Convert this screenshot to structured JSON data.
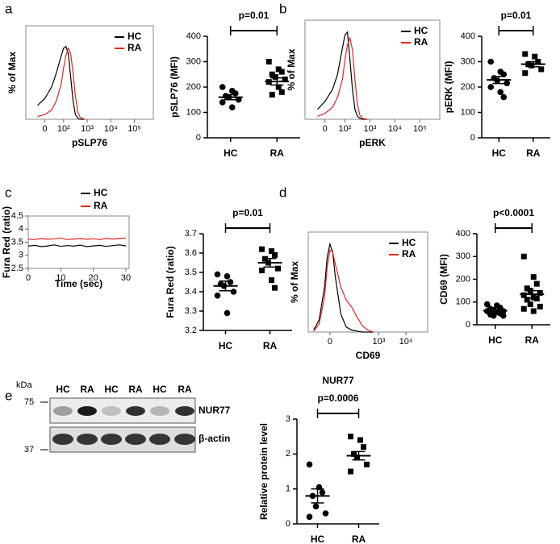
{
  "panel_labels": [
    "a",
    "b",
    "c",
    "d",
    "e"
  ],
  "chart_data": [
    {
      "type": "line",
      "ylabel": "% of Max",
      "xlabel": "pSLP76",
      "xlim": [
        0.4,
        5.8
      ],
      "ylim": [
        0,
        100
      ],
      "xticks": [
        {
          "value": 1.2,
          "label": "0"
        },
        {
          "value": 2,
          "label": "10²"
        },
        {
          "value": 3,
          "label": "10³"
        },
        {
          "value": 4,
          "label": "10⁴"
        },
        {
          "value": 5,
          "label": "10⁵"
        }
      ],
      "legend": "upper right",
      "frame": true,
      "x": [
        0.9,
        1.2,
        1.5,
        1.7,
        1.9,
        2.0,
        2.1,
        2.2,
        2.3,
        2.4,
        2.5,
        2.6,
        2.7,
        2.9
      ],
      "series": [
        {
          "name": "HC",
          "color": "#000000",
          "values": [
            15,
            22,
            35,
            50,
            68,
            76,
            78,
            70,
            45,
            20,
            5,
            1,
            0,
            0
          ]
        },
        {
          "name": "RA",
          "color": "#e8231e",
          "values": [
            3,
            5,
            10,
            20,
            38,
            55,
            68,
            76,
            70,
            50,
            25,
            8,
            2,
            0
          ]
        }
      ]
    },
    {
      "type": "strip",
      "ylabel": "pSLP76 (MFI)",
      "annotation": "p=0.01",
      "categories": [
        "HC",
        "RA"
      ],
      "ylim": [
        0,
        400
      ],
      "yticks": [
        0,
        100,
        200,
        300,
        400
      ],
      "groups": [
        {
          "marker": "circle",
          "values": [
            200,
            185,
            175,
            165,
            160,
            150,
            140,
            120
          ],
          "mean": 160,
          "sem": 10
        },
        {
          "marker": "square",
          "values": [
            300,
            270,
            260,
            250,
            240,
            230,
            220,
            200,
            180,
            170
          ],
          "mean": 222,
          "sem": 14
        }
      ]
    },
    {
      "type": "line",
      "ylabel": "% of Max",
      "xlabel": "pERK",
      "xlim": [
        0.4,
        5.8
      ],
      "ylim": [
        0,
        100
      ],
      "xticks": [
        {
          "value": 1.2,
          "label": "0"
        },
        {
          "value": 2,
          "label": "10²"
        },
        {
          "value": 3,
          "label": "10³"
        },
        {
          "value": 4,
          "label": "10⁴"
        },
        {
          "value": 5,
          "label": "10⁵"
        }
      ],
      "legend": "upper right",
      "frame": true,
      "x": [
        0.9,
        1.2,
        1.5,
        1.7,
        1.9,
        2.0,
        2.1,
        2.2,
        2.3,
        2.4,
        2.5,
        2.6,
        2.7,
        2.9
      ],
      "series": [
        {
          "name": "HC",
          "color": "#000000",
          "values": [
            10,
            18,
            30,
            45,
            72,
            85,
            88,
            60,
            30,
            10,
            3,
            1,
            0,
            0
          ]
        },
        {
          "name": "RA",
          "color": "#e8231e",
          "values": [
            3,
            6,
            12,
            22,
            40,
            60,
            75,
            82,
            70,
            40,
            15,
            4,
            1,
            0
          ]
        }
      ]
    },
    {
      "type": "strip",
      "ylabel": "pERK (MFI)",
      "annotation": "p=0.01",
      "categories": [
        "HC",
        "RA"
      ],
      "ylim": [
        0,
        400
      ],
      "yticks": [
        0,
        100,
        200,
        300,
        400
      ],
      "groups": [
        {
          "marker": "circle",
          "values": [
            300,
            260,
            250,
            235,
            225,
            215,
            200,
            180,
            160
          ],
          "mean": 228,
          "sem": 14
        },
        {
          "marker": "square",
          "values": [
            330,
            320,
            300,
            290,
            285,
            270,
            255
          ],
          "mean": 290,
          "sem": 10
        }
      ]
    },
    {
      "type": "line",
      "ylabel": "Fura Red (ratio)",
      "xlabel": "Time (sec)",
      "xlim": [
        0,
        31
      ],
      "ylim": [
        2.5,
        4.5
      ],
      "xticks": [
        0,
        10,
        20,
        30
      ],
      "yticks": [
        2.5,
        3,
        3.5,
        4,
        4.5
      ],
      "legend": "above",
      "frame": true,
      "x": [
        0,
        2,
        4,
        6,
        8,
        10,
        12,
        14,
        16,
        18,
        20,
        22,
        24,
        26,
        28,
        30
      ],
      "series": [
        {
          "name": "HC",
          "color": "#000000",
          "values": [
            3.35,
            3.38,
            3.33,
            3.36,
            3.4,
            3.34,
            3.37,
            3.35,
            3.39,
            3.33,
            3.36,
            3.38,
            3.34,
            3.37,
            3.4,
            3.36
          ]
        },
        {
          "name": "RA",
          "color": "#e8231e",
          "values": [
            3.62,
            3.6,
            3.64,
            3.61,
            3.63,
            3.66,
            3.6,
            3.62,
            3.64,
            3.61,
            3.63,
            3.6,
            3.65,
            3.62,
            3.64,
            3.66
          ]
        }
      ]
    },
    {
      "type": "strip",
      "ylabel": "Fura Red (ratio)",
      "annotation": "p=0.01",
      "categories": [
        "HC",
        "RA"
      ],
      "ylim": [
        3.2,
        3.7
      ],
      "yticks": [
        3.2,
        3.3,
        3.4,
        3.5,
        3.6,
        3.7
      ],
      "groups": [
        {
          "marker": "circle",
          "values": [
            3.49,
            3.48,
            3.45,
            3.44,
            3.43,
            3.4,
            3.38,
            3.29
          ],
          "mean": 3.43,
          "sem": 0.025
        },
        {
          "marker": "square",
          "values": [
            3.62,
            3.61,
            3.59,
            3.57,
            3.55,
            3.52,
            3.51,
            3.46,
            3.42
          ],
          "mean": 3.55,
          "sem": 0.022
        }
      ]
    },
    {
      "type": "line",
      "ylabel": "% of Max",
      "xlabel": "CD69",
      "xlim": [
        0.4,
        4.8
      ],
      "ylim": [
        0,
        100
      ],
      "xticks": [
        {
          "value": 1.2,
          "label": "0"
        },
        {
          "value": 3,
          "label": "10³"
        },
        {
          "value": 4,
          "label": "10⁴"
        }
      ],
      "legend": "upper right",
      "frame": true,
      "x": [
        0.6,
        0.8,
        1.0,
        1.1,
        1.2,
        1.3,
        1.4,
        1.6,
        1.8,
        2.0,
        2.2,
        2.4,
        2.6,
        2.8
      ],
      "series": [
        {
          "name": "HC",
          "color": "#000000",
          "values": [
            2,
            12,
            45,
            75,
            88,
            80,
            55,
            18,
            5,
            2,
            1,
            0,
            0,
            0
          ]
        },
        {
          "name": "RA",
          "color": "#e8231e",
          "values": [
            1,
            8,
            35,
            65,
            82,
            80,
            68,
            45,
            32,
            25,
            15,
            6,
            2,
            0
          ]
        }
      ]
    },
    {
      "type": "strip",
      "ylabel": "CD69 (MFI)",
      "annotation": "p<0.0001",
      "categories": [
        "HC",
        "RA"
      ],
      "ylim": [
        0,
        400
      ],
      "yticks": [
        0,
        100,
        200,
        300,
        400
      ],
      "groups": [
        {
          "marker": "circle",
          "values": [
            90,
            85,
            75,
            70,
            65,
            60,
            60,
            55,
            50,
            45,
            40,
            40
          ],
          "mean": 62,
          "sem": 5
        },
        {
          "marker": "square",
          "values": [
            300,
            210,
            180,
            160,
            150,
            140,
            130,
            120,
            115,
            110,
            90,
            80,
            70,
            60
          ],
          "mean": 134,
          "sem": 16
        }
      ]
    },
    {
      "type": "strip",
      "title": "NUR77",
      "ylabel": "Relative protein level",
      "annotation": "p=0.0006",
      "categories": [
        "HC",
        "RA"
      ],
      "ylim": [
        0,
        3
      ],
      "yticks": [
        0,
        1,
        2,
        3
      ],
      "groups": [
        {
          "marker": "circle",
          "values": [
            1.7,
            1.05,
            0.9,
            0.8,
            0.5,
            0.3,
            0.2
          ],
          "mean": 0.8,
          "sem": 0.2
        },
        {
          "marker": "square",
          "values": [
            2.5,
            2.4,
            2.2,
            2.0,
            1.9,
            1.7,
            1.5
          ],
          "mean": 1.95,
          "sem": 0.12
        }
      ]
    }
  ],
  "blot": {
    "kda_label": "kDa",
    "markers": [
      "75",
      "37"
    ],
    "lanes": [
      "HC",
      "RA",
      "HC",
      "RA",
      "HC",
      "RA"
    ],
    "bands": [
      "NUR77",
      "β-actin"
    ]
  }
}
